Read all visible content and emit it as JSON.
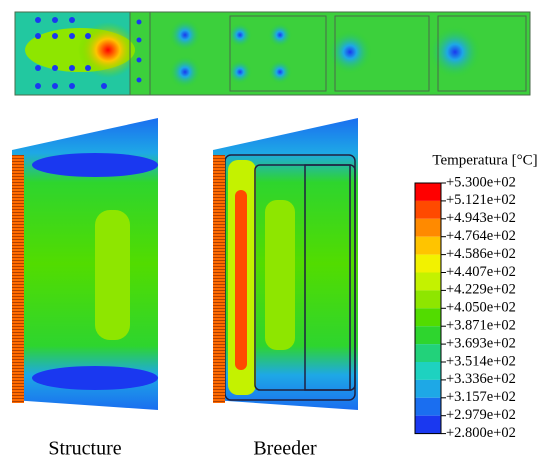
{
  "legend": {
    "title": "Temperatura [°C]",
    "labels": [
      "+5.300e+02",
      "+5.121e+02",
      "+4.943e+02",
      "+4.764e+02",
      "+4.586e+02",
      "+4.407e+02",
      "+4.229e+02",
      "+4.050e+02",
      "+3.871e+02",
      "+3.693e+02",
      "+3.514e+02",
      "+3.336e+02",
      "+3.157e+02",
      "+2.979e+02",
      "+2.800e+02"
    ],
    "colors": [
      "#ff0000",
      "#ff4a00",
      "#ff8a00",
      "#ffc400",
      "#f2f200",
      "#c4f200",
      "#8ee600",
      "#52dc00",
      "#2ed52e",
      "#22d27a",
      "#1ed2c0",
      "#1ea8e6",
      "#1a6ef0",
      "#1a38f0"
    ]
  },
  "panels": [
    {
      "caption": "Structure"
    },
    {
      "caption": "Breeder"
    }
  ]
}
